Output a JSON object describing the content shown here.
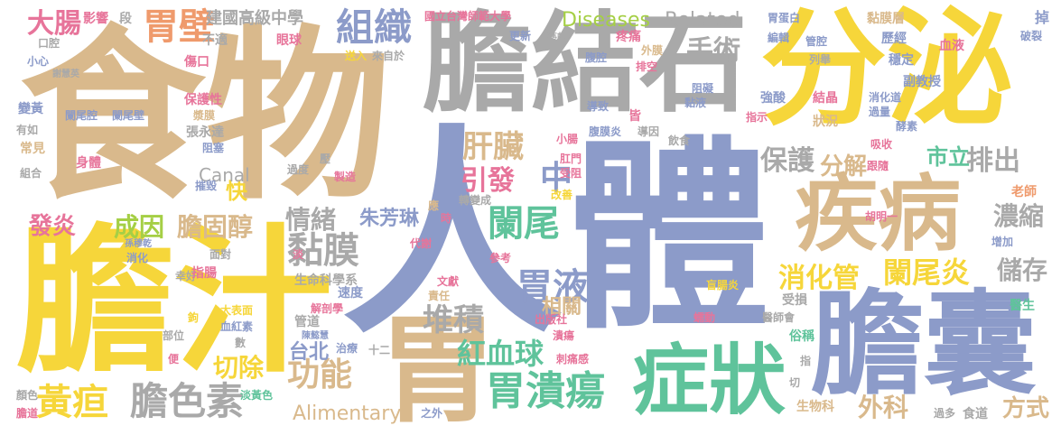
{
  "colors": {
    "tan": "#d9b98c",
    "yellow": "#f6d63a",
    "gray": "#a9a9a9",
    "blue": "#8c9bc9",
    "green": "#5fc39b",
    "pink": "#e7749a",
    "orange": "#ef9a6c",
    "lime": "#a5cf45"
  },
  "words": [
    {
      "text": "食物",
      "color": "tan"
    },
    {
      "text": "人",
      "color": "blue"
    },
    {
      "text": "體",
      "color": "blue"
    },
    {
      "text": "膽汁",
      "color": "yellow"
    },
    {
      "text": "膽結石",
      "color": "gray"
    },
    {
      "text": "分泌",
      "color": "yellow"
    },
    {
      "text": "胃",
      "color": "tan"
    },
    {
      "text": "膽囊",
      "color": "blue"
    },
    {
      "text": "疾病",
      "color": "tan"
    },
    {
      "text": "症狀",
      "color": "green"
    },
    {
      "text": "胃潰瘍",
      "color": "green"
    },
    {
      "text": "膽色素",
      "color": "gray"
    },
    {
      "text": "黃疸",
      "color": "yellow"
    },
    {
      "text": "組織",
      "color": "blue"
    },
    {
      "text": "胃壁",
      "color": "orange"
    },
    {
      "text": "大腸",
      "color": "pink"
    },
    {
      "text": "闌尾",
      "color": "green"
    },
    {
      "text": "胃液",
      "color": "blue"
    },
    {
      "text": "肝臟",
      "color": "tan"
    },
    {
      "text": "黏膜",
      "color": "gray"
    },
    {
      "text": "堆積",
      "color": "gray"
    },
    {
      "text": "功能",
      "color": "tan"
    },
    {
      "text": "紅血球",
      "color": "green"
    },
    {
      "text": "消化管",
      "color": "yellow"
    },
    {
      "text": "闌尾炎",
      "color": "yellow"
    },
    {
      "text": "手術",
      "color": "gray"
    },
    {
      "text": "保護",
      "color": "gray"
    },
    {
      "text": "分解",
      "color": "tan"
    },
    {
      "text": "排出",
      "color": "gray"
    },
    {
      "text": "引發",
      "color": "pink"
    },
    {
      "text": "中",
      "color": "blue"
    },
    {
      "text": "成因",
      "color": "lime"
    },
    {
      "text": "膽固醇",
      "color": "tan"
    },
    {
      "text": "情緒",
      "color": "gray"
    },
    {
      "text": "發炎",
      "color": "pink"
    },
    {
      "text": "切除",
      "color": "yellow"
    },
    {
      "text": "濃縮",
      "color": "gray"
    },
    {
      "text": "儲存",
      "color": "gray"
    },
    {
      "text": "外科",
      "color": "tan"
    },
    {
      "text": "方式",
      "color": "tan"
    },
    {
      "text": "市立",
      "color": "green"
    },
    {
      "text": "快",
      "color": "yellow"
    },
    {
      "text": "相關",
      "color": "tan"
    },
    {
      "text": "台北",
      "color": "blue"
    },
    {
      "text": "朱芳琳",
      "color": "blue"
    },
    {
      "text": "Canal",
      "color": "gray"
    },
    {
      "text": "Alimentary",
      "color": "tan"
    },
    {
      "text": "Diseases",
      "color": "lime"
    },
    {
      "text": "Related",
      "color": "gray"
    },
    {
      "text": "建國高級中學",
      "color": "gray"
    },
    {
      "text": "國立台灣師範大學",
      "color": "pink"
    },
    {
      "text": "影響",
      "color": "pink"
    },
    {
      "text": "段",
      "color": "gray"
    },
    {
      "text": "不適",
      "color": "gray"
    },
    {
      "text": "眼球",
      "color": "pink"
    },
    {
      "text": "口腔",
      "color": "gray"
    },
    {
      "text": "小心",
      "color": "blue"
    },
    {
      "text": "傷口",
      "color": "pink"
    },
    {
      "text": "送入",
      "color": "yellow"
    },
    {
      "text": "來自於",
      "color": "gray"
    },
    {
      "text": "更新",
      "color": "blue"
    },
    {
      "text": "藝軒",
      "color": "gray"
    },
    {
      "text": "疼痛",
      "color": "pink"
    },
    {
      "text": "外膜",
      "color": "tan"
    },
    {
      "text": "排空",
      "color": "pink"
    },
    {
      "text": "腹腔",
      "color": "blue"
    },
    {
      "text": "胃蛋白",
      "color": "blue"
    },
    {
      "text": "編輯",
      "color": "blue"
    },
    {
      "text": "管腔",
      "color": "blue"
    },
    {
      "text": "黏膜層",
      "color": "tan"
    },
    {
      "text": "歷經",
      "color": "blue"
    },
    {
      "text": "穩定",
      "color": "blue"
    },
    {
      "text": "血液",
      "color": "pink"
    },
    {
      "text": "掉",
      "color": "blue"
    },
    {
      "text": "破裂",
      "color": "blue"
    },
    {
      "text": "列舉",
      "color": "gray"
    },
    {
      "text": "阻礙",
      "color": "blue"
    },
    {
      "text": "黏液",
      "color": "blue"
    },
    {
      "text": "強酸",
      "color": "blue"
    },
    {
      "text": "結晶",
      "color": "pink"
    },
    {
      "text": "副教授",
      "color": "blue"
    },
    {
      "text": "消化道",
      "color": "blue"
    },
    {
      "text": "過量",
      "color": "blue"
    },
    {
      "text": "酵素",
      "color": "blue"
    },
    {
      "text": "指示",
      "color": "pink"
    },
    {
      "text": "狀況",
      "color": "tan"
    },
    {
      "text": "吸收",
      "color": "pink"
    },
    {
      "text": "謝慧英",
      "color": "gray"
    },
    {
      "text": "保護性",
      "color": "pink"
    },
    {
      "text": "漿膜",
      "color": "tan"
    },
    {
      "text": "張永達",
      "color": "gray"
    },
    {
      "text": "阻塞",
      "color": "blue"
    },
    {
      "text": "變黃",
      "color": "blue"
    },
    {
      "text": "闌尾腔",
      "color": "blue"
    },
    {
      "text": "闌尾壁",
      "color": "blue"
    },
    {
      "text": "有如",
      "color": "gray"
    },
    {
      "text": "常見",
      "color": "tan"
    },
    {
      "text": "身體",
      "color": "pink"
    },
    {
      "text": "組合",
      "color": "gray"
    },
    {
      "text": "導致",
      "color": "blue"
    },
    {
      "text": "皆",
      "color": "pink"
    },
    {
      "text": "腹膜炎",
      "color": "blue"
    },
    {
      "text": "導因",
      "color": "gray"
    },
    {
      "text": "小腸",
      "color": "pink"
    },
    {
      "text": "肛門",
      "color": "pink"
    },
    {
      "text": "受阻",
      "color": "pink"
    },
    {
      "text": "飲食",
      "color": "gray"
    },
    {
      "text": "跟隨",
      "color": "pink"
    },
    {
      "text": "壓",
      "color": "gray"
    },
    {
      "text": "過度",
      "color": "gray"
    },
    {
      "text": "製造",
      "color": "pink"
    },
    {
      "text": "摧毀",
      "color": "blue"
    },
    {
      "text": "轉變成",
      "color": "gray"
    },
    {
      "text": "改善",
      "color": "yellow"
    },
    {
      "text": "老師",
      "color": "orange"
    },
    {
      "text": "應",
      "color": "tan"
    },
    {
      "text": "時",
      "color": "pink"
    },
    {
      "text": "胡明一",
      "color": "pink"
    },
    {
      "text": "孫穆乾",
      "color": "blue"
    },
    {
      "text": "消化",
      "color": "blue"
    },
    {
      "text": "淡",
      "color": "pink"
    },
    {
      "text": "面對",
      "color": "gray"
    },
    {
      "text": "幸好",
      "color": "gray"
    },
    {
      "text": "指腸",
      "color": "pink"
    },
    {
      "text": "代謝",
      "color": "pink"
    },
    {
      "text": "生命科學系",
      "color": "gray"
    },
    {
      "text": "文獻",
      "color": "pink"
    },
    {
      "text": "參考",
      "color": "pink"
    },
    {
      "text": "責任",
      "color": "tan"
    },
    {
      "text": "速度",
      "color": "blue"
    },
    {
      "text": "增加",
      "color": "blue"
    },
    {
      "text": "醫生",
      "color": "green"
    },
    {
      "text": "盲腸炎",
      "color": "yellow"
    },
    {
      "text": "受損",
      "color": "gray"
    },
    {
      "text": "醫師會",
      "color": "gray"
    },
    {
      "text": "解剖學",
      "color": "pink"
    },
    {
      "text": "鉤",
      "color": "yellow"
    },
    {
      "text": "太表面",
      "color": "yellow"
    },
    {
      "text": "血紅素",
      "color": "blue"
    },
    {
      "text": "管道",
      "color": "gray"
    },
    {
      "text": "出版社",
      "color": "pink"
    },
    {
      "text": "蠕動",
      "color": "pink"
    },
    {
      "text": "部位",
      "color": "gray"
    },
    {
      "text": "數",
      "color": "gray"
    },
    {
      "text": "陳懿慧",
      "color": "blue"
    },
    {
      "text": "治療",
      "color": "blue"
    },
    {
      "text": "十二",
      "color": "gray"
    },
    {
      "text": "潰瘍",
      "color": "pink"
    },
    {
      "text": "俗稱",
      "color": "green"
    },
    {
      "text": "便",
      "color": "pink"
    },
    {
      "text": "刺痛感",
      "color": "pink"
    },
    {
      "text": "指",
      "color": "gray"
    },
    {
      "text": "切",
      "color": "gray"
    },
    {
      "text": "顏色",
      "color": "gray"
    },
    {
      "text": "淡黃色",
      "color": "green"
    },
    {
      "text": "膽道",
      "color": "pink"
    },
    {
      "text": "之外",
      "color": "blue"
    },
    {
      "text": "生物科",
      "color": "tan"
    },
    {
      "text": "過多",
      "color": "gray"
    },
    {
      "text": "食道",
      "color": "gray"
    }
  ]
}
